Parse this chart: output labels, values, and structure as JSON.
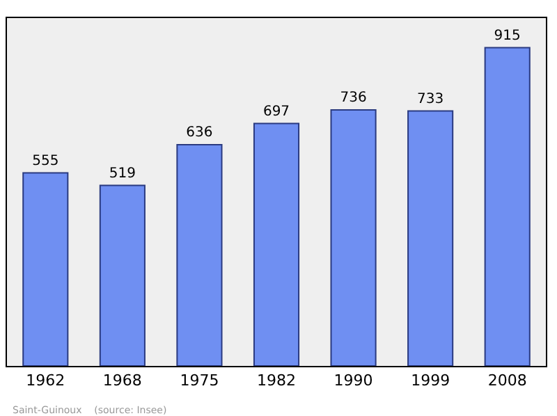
{
  "chart_data": {
    "type": "bar",
    "categories": [
      "1962",
      "1968",
      "1975",
      "1982",
      "1990",
      "1999",
      "2008"
    ],
    "values": [
      555,
      519,
      636,
      697,
      736,
      733,
      915
    ],
    "color": "#6f8ff2",
    "data_labels": true,
    "ylim": [
      0,
      1000
    ],
    "grid": false,
    "annotations": [
      "Saint-Guinoux    (source: Insee)"
    ]
  }
}
